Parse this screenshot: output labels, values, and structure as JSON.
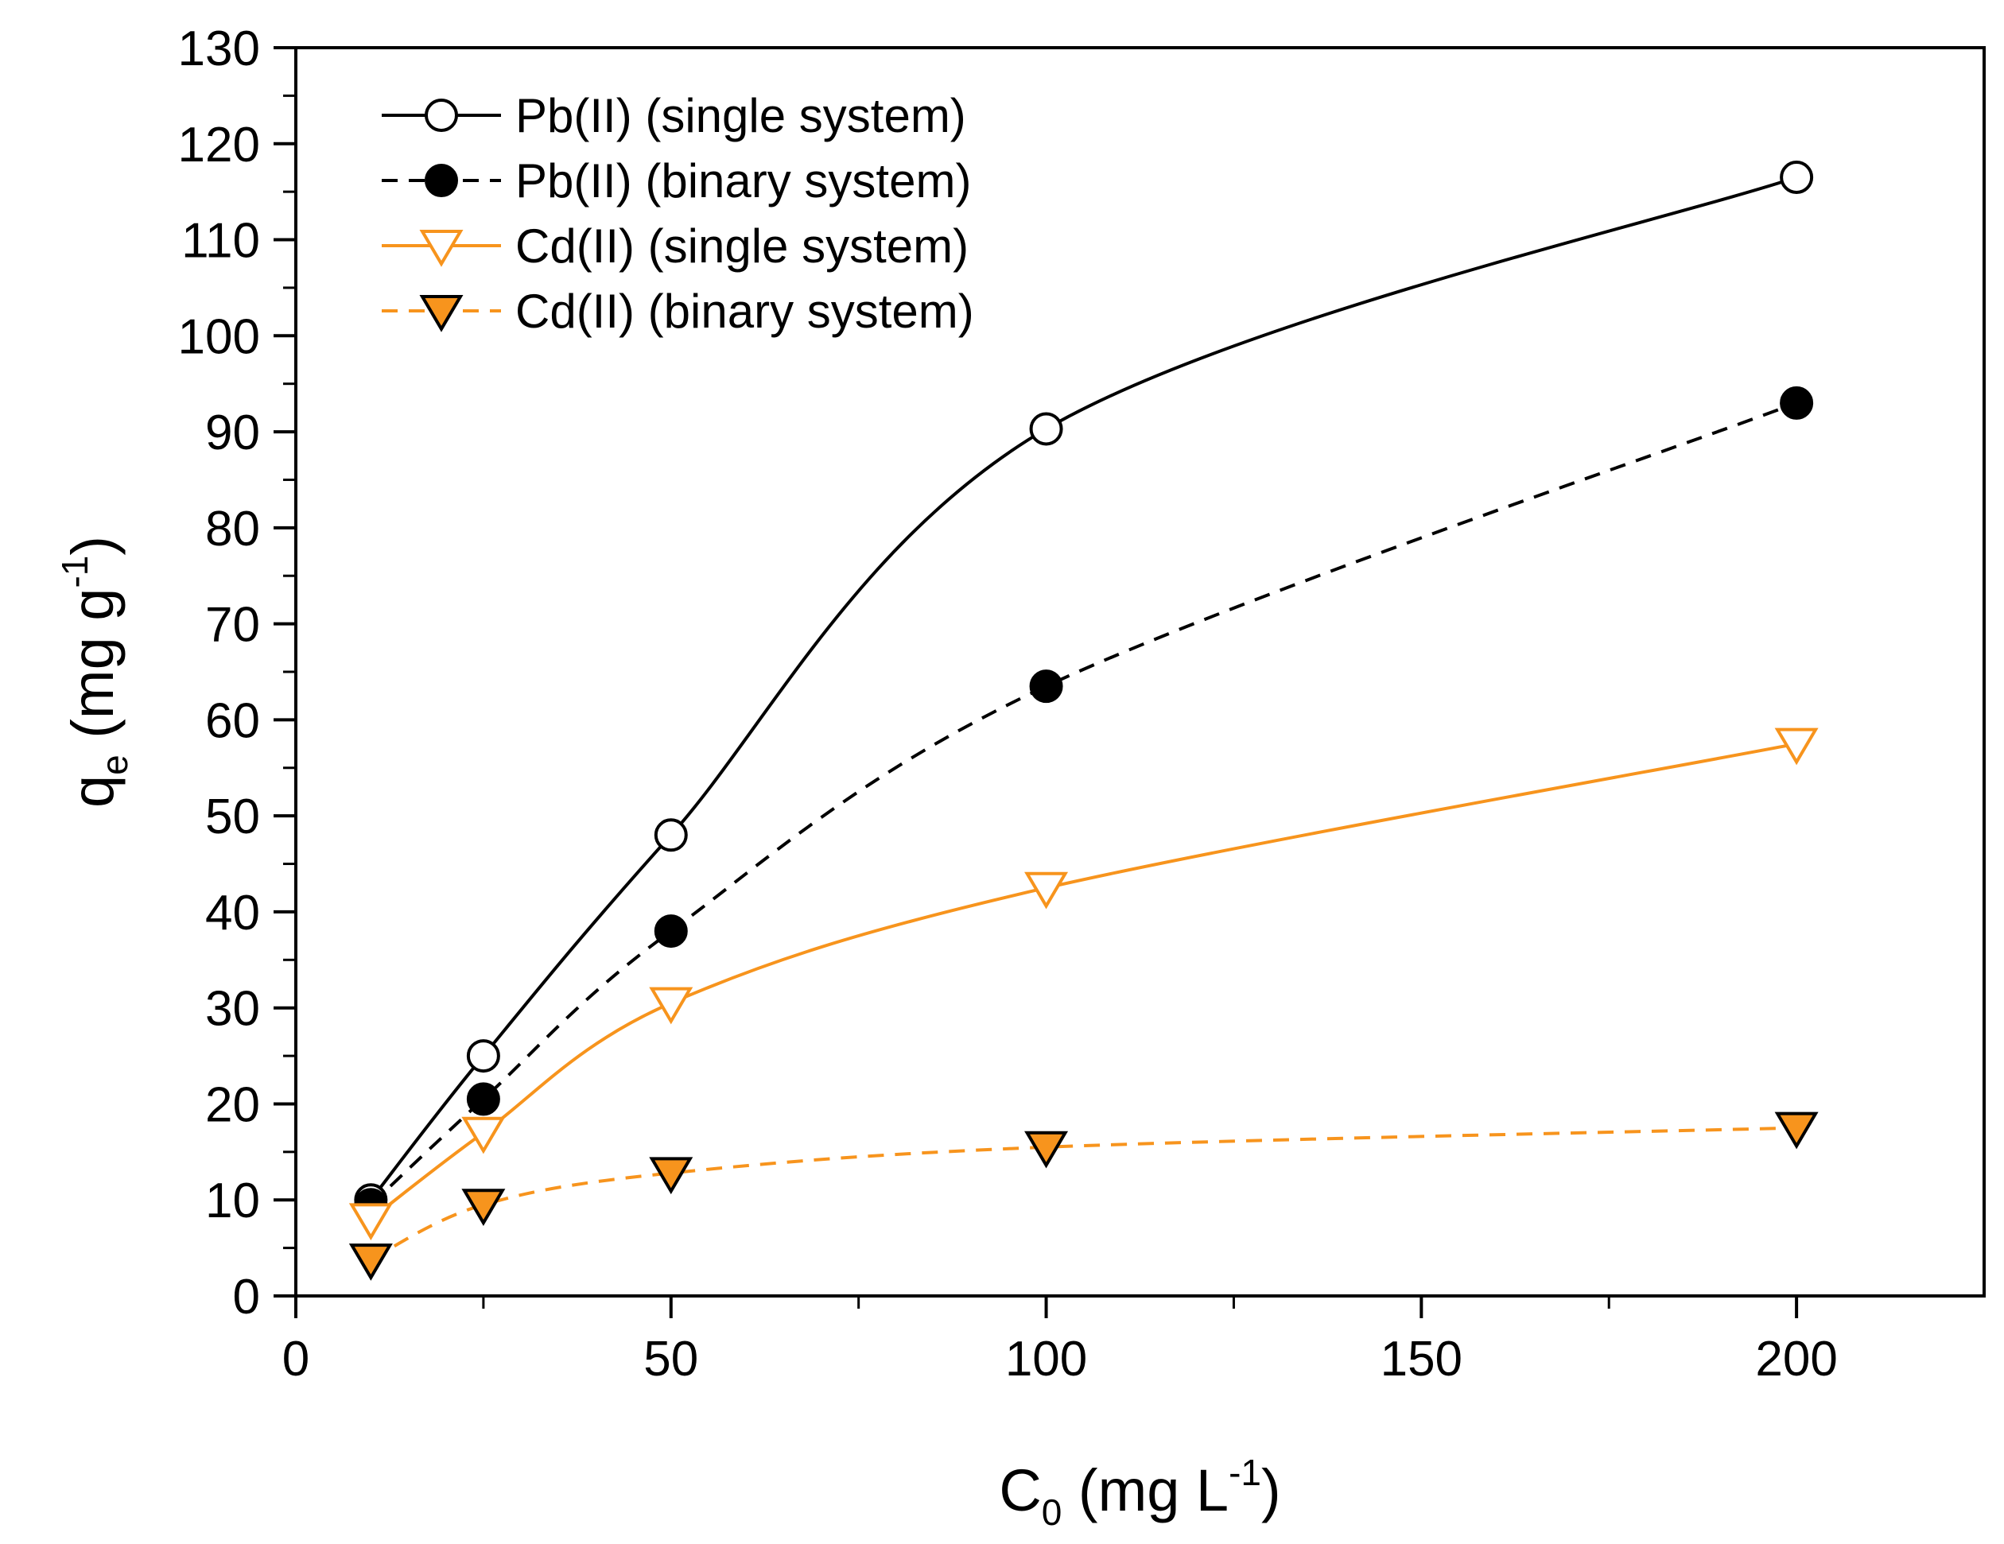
{
  "chart_data": {
    "type": "line",
    "xlabel": {
      "base": "C",
      "sub": "0",
      "unit_pre": " (mg L",
      "sup": "-1",
      "unit_post": ")"
    },
    "ylabel": {
      "base": "q",
      "sub": "e",
      "unit_pre": " (mg g",
      "sup": "-1",
      "unit_post": ")"
    },
    "xlim": [
      0,
      225
    ],
    "ylim": [
      0,
      130
    ],
    "xticks": [
      0,
      50,
      100,
      150,
      200
    ],
    "yticks": [
      0,
      10,
      20,
      30,
      40,
      50,
      60,
      70,
      80,
      90,
      100,
      110,
      120,
      130
    ],
    "grid": false,
    "legend_position": "top-left",
    "series": [
      {
        "name": "Pb(II) (single system)",
        "color": "#000000",
        "dash": "solid",
        "marker": "circle-open",
        "x": [
          10,
          25,
          50,
          100,
          200
        ],
        "y": [
          10,
          25,
          48,
          90.3,
          116.5
        ]
      },
      {
        "name": "Pb(II) (binary system)",
        "color": "#000000",
        "dash": "dashed",
        "marker": "circle-filled",
        "x": [
          10,
          25,
          50,
          100,
          200
        ],
        "y": [
          9.5,
          20.5,
          38,
          63.5,
          93
        ]
      },
      {
        "name": "Cd(II) (single system)",
        "color": "#f7941d",
        "dash": "solid",
        "marker": "triangle-open",
        "x": [
          10,
          25,
          50,
          100,
          200
        ],
        "y": [
          8,
          17,
          30.5,
          42.5,
          57.5
        ]
      },
      {
        "name": "Cd(II) (binary system)",
        "color": "#f7941d",
        "dash": "dashed",
        "marker": "triangle-filled",
        "x": [
          10,
          25,
          50,
          100,
          200
        ],
        "y": [
          3.8,
          9.5,
          12.8,
          15.5,
          17.5
        ]
      }
    ]
  }
}
